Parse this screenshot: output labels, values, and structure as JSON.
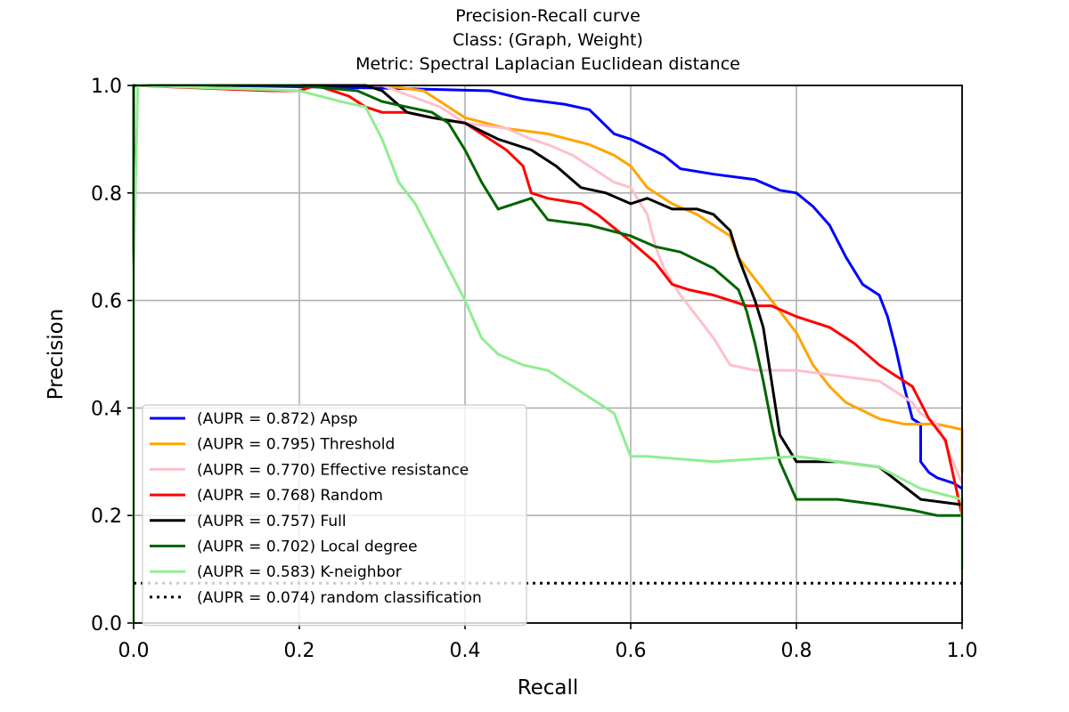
{
  "chart_data": {
    "type": "line",
    "title": [
      "Precision-Recall curve",
      "Class: (Graph, Weight)",
      "Metric: Spectral Laplacian Euclidean distance"
    ],
    "xlabel": "Recall",
    "ylabel": "Precision",
    "xlim": [
      0.0,
      1.0
    ],
    "ylim": [
      0.0,
      1.0
    ],
    "xticks": [
      "0.0",
      "0.2",
      "0.4",
      "0.6",
      "0.8",
      "1.0"
    ],
    "yticks": [
      "0.0",
      "0.2",
      "0.4",
      "0.6",
      "0.8",
      "1.0"
    ],
    "grid": true,
    "legend_position": "lower-left",
    "series": [
      {
        "name": "(AUPR = 0.872) Apsp",
        "color": "#0000ff",
        "style": "solid",
        "x": [
          0.0,
          0.0,
          0.1,
          0.3,
          0.43,
          0.47,
          0.52,
          0.55,
          0.56,
          0.57,
          0.58,
          0.6,
          0.64,
          0.66,
          0.7,
          0.75,
          0.78,
          0.8,
          0.82,
          0.84,
          0.86,
          0.88,
          0.9,
          0.91,
          0.92,
          0.93,
          0.94,
          0.95,
          0.95,
          0.96,
          0.97,
          0.99,
          1.0
        ],
        "y": [
          0.0,
          1.0,
          1.0,
          0.995,
          0.99,
          0.975,
          0.965,
          0.955,
          0.94,
          0.925,
          0.91,
          0.9,
          0.87,
          0.845,
          0.835,
          0.825,
          0.805,
          0.8,
          0.775,
          0.74,
          0.68,
          0.63,
          0.61,
          0.57,
          0.51,
          0.44,
          0.38,
          0.37,
          0.3,
          0.28,
          0.27,
          0.26,
          0.25
        ]
      },
      {
        "name": "(AUPR = 0.795) Threshold",
        "color": "#ffa500",
        "style": "solid",
        "x": [
          0.0,
          0.0,
          0.3,
          0.35,
          0.4,
          0.45,
          0.5,
          0.55,
          0.58,
          0.6,
          0.62,
          0.65,
          0.68,
          0.7,
          0.72,
          0.73,
          0.75,
          0.76,
          0.78,
          0.8,
          0.82,
          0.84,
          0.86,
          0.9,
          0.93,
          0.97,
          1.0,
          1.0
        ],
        "y": [
          0.0,
          1.0,
          1.0,
          0.99,
          0.94,
          0.92,
          0.91,
          0.89,
          0.87,
          0.85,
          0.81,
          0.78,
          0.76,
          0.74,
          0.72,
          0.68,
          0.64,
          0.62,
          0.58,
          0.54,
          0.48,
          0.44,
          0.41,
          0.38,
          0.37,
          0.37,
          0.36,
          0.28
        ]
      },
      {
        "name": "(AUPR = 0.770) Effective resistance",
        "color": "#ffc0cb",
        "style": "solid",
        "x": [
          0.0,
          0.0,
          0.3,
          0.37,
          0.4,
          0.45,
          0.48,
          0.5,
          0.53,
          0.56,
          0.58,
          0.6,
          0.62,
          0.63,
          0.64,
          0.66,
          0.68,
          0.7,
          0.72,
          0.75,
          0.8,
          0.85,
          0.9,
          0.92,
          0.94,
          0.95,
          0.97,
          1.0
        ],
        "y": [
          0.0,
          1.0,
          1.0,
          0.96,
          0.93,
          0.92,
          0.9,
          0.89,
          0.87,
          0.84,
          0.82,
          0.81,
          0.76,
          0.7,
          0.66,
          0.61,
          0.57,
          0.53,
          0.48,
          0.47,
          0.47,
          0.46,
          0.45,
          0.43,
          0.41,
          0.39,
          0.37,
          0.26
        ]
      },
      {
        "name": "(AUPR = 0.768) Random",
        "color": "#ff0000",
        "style": "solid",
        "x": [
          0.0,
          0.0,
          0.165,
          0.2,
          0.22,
          0.24,
          0.26,
          0.28,
          0.3,
          0.33,
          0.36,
          0.4,
          0.45,
          0.47,
          0.48,
          0.5,
          0.54,
          0.56,
          0.6,
          0.63,
          0.65,
          0.67,
          0.7,
          0.74,
          0.77,
          0.8,
          0.84,
          0.87,
          0.9,
          0.92,
          0.94,
          0.96,
          0.98,
          1.0
        ],
        "y": [
          0.0,
          1.0,
          0.99,
          0.99,
          1.0,
          0.99,
          0.98,
          0.96,
          0.95,
          0.95,
          0.94,
          0.93,
          0.88,
          0.85,
          0.8,
          0.79,
          0.78,
          0.76,
          0.71,
          0.67,
          0.63,
          0.62,
          0.61,
          0.59,
          0.59,
          0.57,
          0.55,
          0.52,
          0.48,
          0.46,
          0.44,
          0.38,
          0.34,
          0.2
        ]
      },
      {
        "name": "(AUPR = 0.757) Full",
        "color": "#000000",
        "style": "solid",
        "x": [
          0.0,
          0.0,
          0.28,
          0.3,
          0.33,
          0.36,
          0.4,
          0.44,
          0.48,
          0.51,
          0.54,
          0.57,
          0.6,
          0.62,
          0.65,
          0.68,
          0.7,
          0.72,
          0.73,
          0.75,
          0.76,
          0.77,
          0.78,
          0.8,
          0.85,
          0.9,
          0.95,
          1.0
        ],
        "y": [
          0.0,
          1.0,
          1.0,
          0.99,
          0.95,
          0.94,
          0.93,
          0.9,
          0.88,
          0.85,
          0.81,
          0.8,
          0.78,
          0.79,
          0.77,
          0.77,
          0.76,
          0.73,
          0.68,
          0.6,
          0.55,
          0.45,
          0.35,
          0.3,
          0.3,
          0.29,
          0.23,
          0.22
        ]
      },
      {
        "name": "(AUPR = 0.702) Local degree",
        "color": "#006400",
        "style": "solid",
        "x": [
          0.0,
          0.0,
          0.2,
          0.27,
          0.3,
          0.33,
          0.36,
          0.38,
          0.4,
          0.42,
          0.44,
          0.48,
          0.5,
          0.55,
          0.6,
          0.63,
          0.66,
          0.7,
          0.73,
          0.74,
          0.75,
          0.76,
          0.77,
          0.78,
          0.8,
          0.85,
          0.9,
          0.94,
          0.97,
          1.0
        ],
        "y": [
          0.0,
          1.0,
          1.0,
          0.99,
          0.97,
          0.96,
          0.95,
          0.93,
          0.88,
          0.82,
          0.77,
          0.79,
          0.75,
          0.74,
          0.72,
          0.7,
          0.69,
          0.66,
          0.62,
          0.58,
          0.52,
          0.45,
          0.37,
          0.3,
          0.23,
          0.23,
          0.22,
          0.21,
          0.2,
          0.2
        ]
      },
      {
        "name": "(AUPR = 0.583) K-neighbor",
        "color": "#90ee90",
        "style": "solid",
        "x": [
          0.0,
          0.0,
          0.005,
          0.2,
          0.25,
          0.28,
          0.3,
          0.32,
          0.34,
          0.36,
          0.38,
          0.4,
          0.42,
          0.44,
          0.47,
          0.5,
          0.52,
          0.54,
          0.56,
          0.58,
          0.6,
          0.62,
          0.7,
          0.8,
          0.85,
          0.9,
          0.95,
          1.0,
          1.0
        ],
        "y": [
          0.0,
          0.66,
          1.0,
          0.99,
          0.97,
          0.96,
          0.9,
          0.82,
          0.78,
          0.72,
          0.66,
          0.6,
          0.53,
          0.5,
          0.48,
          0.47,
          0.45,
          0.43,
          0.41,
          0.39,
          0.31,
          0.31,
          0.3,
          0.31,
          0.3,
          0.29,
          0.25,
          0.23,
          0.1
        ]
      },
      {
        "name": "(AUPR = 0.074) random classification",
        "color": "#000000",
        "style": "dotted",
        "x": [
          0.0,
          1.0
        ],
        "y": [
          0.074,
          0.074
        ]
      }
    ]
  }
}
